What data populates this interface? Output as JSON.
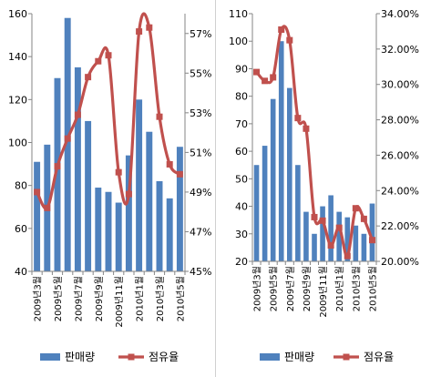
{
  "chart_data": [
    {
      "type": "bar",
      "combo": "bar+line (dual axis)",
      "categories": [
        "2009년3월",
        "2009년4월",
        "2009년5월",
        "2009년6월",
        "2009년7월",
        "2009년8월",
        "2009년9월",
        "2009년10월",
        "2009년11월",
        "2009년12월",
        "2010년1월",
        "2010년2월",
        "2010년3월",
        "2010년4월",
        "2010년5월"
      ],
      "category_labels_shown": [
        "2009년3월",
        "",
        "2009년5월",
        "",
        "2009년7월",
        "",
        "2009년9월",
        "",
        "2009년11월",
        "",
        "2010년1월",
        "",
        "2010년3월",
        "",
        "2010년5월"
      ],
      "series": [
        {
          "name": "판매량",
          "type": "bar",
          "axis": "left",
          "color": "#4f81bd",
          "values": [
            91,
            99,
            130,
            158,
            135,
            110,
            79,
            77,
            72,
            94,
            120,
            105,
            82,
            74,
            98
          ]
        },
        {
          "name": "점유율",
          "type": "line",
          "axis": "right",
          "color": "#c0504d",
          "values": [
            49.0,
            48.2,
            50.3,
            51.7,
            52.9,
            54.8,
            55.6,
            55.9,
            50.0,
            48.9,
            57.1,
            57.3,
            52.8,
            50.4,
            49.9
          ]
        }
      ],
      "left_axis": {
        "min": 40,
        "max": 160,
        "step": 20,
        "ticks": [
          "40",
          "60",
          "80",
          "100",
          "120",
          "140",
          "160"
        ]
      },
      "right_axis": {
        "min": 45,
        "max": 58,
        "ticks": [
          {
            "value": 45,
            "label": "45%"
          },
          {
            "value": 47,
            "label": "47%"
          },
          {
            "value": 49,
            "label": "49%"
          },
          {
            "value": 51,
            "label": "51%"
          },
          {
            "value": 53,
            "label": "53%"
          },
          {
            "value": 55,
            "label": "55%"
          },
          {
            "value": 57,
            "label": "57%"
          }
        ]
      },
      "title": "",
      "xlabel": "",
      "ylabel": "",
      "grid": false,
      "legend_position": "bottom"
    },
    {
      "type": "bar",
      "combo": "bar+line (dual axis)",
      "categories": [
        "2009년3월",
        "2009년4월",
        "2009년5월",
        "2009년6월",
        "2009년7월",
        "2009년8월",
        "2009년9월",
        "2009년10월",
        "2009년11월",
        "2009년12월",
        "2010년1월",
        "2010년2월",
        "2010년3월",
        "2010년4월",
        "2010년5월"
      ],
      "category_labels_shown": [
        "2009년3월",
        "",
        "2009년5월",
        "",
        "2009년7월",
        "",
        "2009년9월",
        "",
        "2009년11월",
        "",
        "2010년1월",
        "",
        "2010년3월",
        "",
        "2010년5월"
      ],
      "series": [
        {
          "name": "판매량",
          "type": "bar",
          "axis": "left",
          "color": "#4f81bd",
          "values": [
            55,
            62,
            79,
            100,
            83,
            55,
            38,
            30,
            40,
            44,
            38,
            36,
            33,
            30,
            41
          ]
        },
        {
          "name": "점유율",
          "type": "line",
          "axis": "right",
          "color": "#c0504d",
          "values": [
            30.7,
            30.2,
            30.4,
            33.1,
            32.5,
            28.1,
            27.5,
            22.5,
            22.3,
            20.9,
            21.9,
            20.3,
            23.0,
            22.4,
            21.2
          ]
        }
      ],
      "left_axis": {
        "min": 20,
        "max": 110,
        "step": 10,
        "ticks": [
          "20",
          "30",
          "40",
          "50",
          "60",
          "70",
          "80",
          "90",
          "100",
          "110"
        ]
      },
      "right_axis": {
        "min": 20,
        "max": 34,
        "ticks": [
          {
            "value": 20,
            "label": "20.00%"
          },
          {
            "value": 22,
            "label": "22.00%"
          },
          {
            "value": 24,
            "label": "24.00%"
          },
          {
            "value": 26,
            "label": "26.00%"
          },
          {
            "value": 28,
            "label": "28.00%"
          },
          {
            "value": 30,
            "label": "30.00%"
          },
          {
            "value": 32,
            "label": "32.00%"
          },
          {
            "value": 34,
            "label": "34.00%"
          }
        ]
      },
      "title": "",
      "xlabel": "",
      "ylabel": "",
      "grid": false,
      "legend_position": "bottom"
    }
  ]
}
